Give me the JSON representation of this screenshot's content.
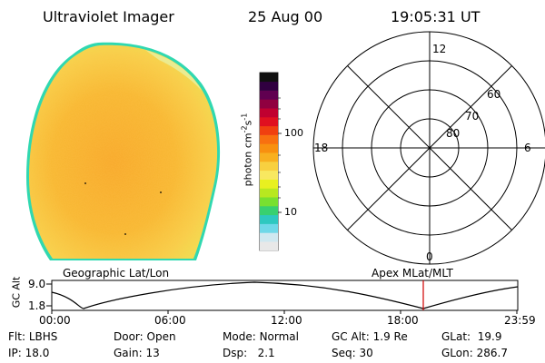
{
  "header": {
    "title": "Ultraviolet Imager",
    "date": "25 Aug 00",
    "time": "19:05:31 UT"
  },
  "colorbar": {
    "label_main": "photon cm",
    "label_sup1": "-2",
    "label_mid": "s",
    "label_sup2": "-1",
    "tick_100": "100",
    "tick_10": "10",
    "colors": [
      "#e8e8e8",
      "#cfe8f0",
      "#6fd8e8",
      "#2ec8c0",
      "#38d070",
      "#78e030",
      "#b8e820",
      "#e8f020",
      "#f8e860",
      "#f8d040",
      "#f8b020",
      "#f89010",
      "#f87010",
      "#f04010",
      "#e01020",
      "#c00030",
      "#900040",
      "#600050",
      "#300040",
      "#101010"
    ]
  },
  "polar": {
    "label_top": "12",
    "label_left": "18",
    "label_right": "6",
    "label_bottom": "0",
    "lat_60": "60",
    "lat_70": "70",
    "lat_80": "80"
  },
  "timeline": {
    "left_title": "Geographic Lat/Lon",
    "right_title": "Apex MLat/MLT",
    "axis_label": "GC Alt",
    "y_top": "9.0",
    "y_bottom": "1.8",
    "times": [
      "00:00",
      "06:00",
      "12:00",
      "18:00",
      "23:59"
    ]
  },
  "info": {
    "flt_label": "Flt:",
    "flt_value": "LBHS",
    "ip_label": "IP:",
    "ip_value": "18.0",
    "door_label": "Door:",
    "door_value": "Open",
    "gain_label": "Gain:",
    "gain_value": "13",
    "mode_label": "Mode:",
    "mode_value": "Normal",
    "dsp_label": "Dsp:",
    "dsp_value": "2.1",
    "gcalt_label": "GC Alt:",
    "gcalt_value": "1.9 Re",
    "seq_label": "Seq:",
    "seq_value": "30",
    "glat_label": "GLat:",
    "glat_value": "19.9",
    "glon_label": "GLon:",
    "glon_value": "286.7"
  }
}
